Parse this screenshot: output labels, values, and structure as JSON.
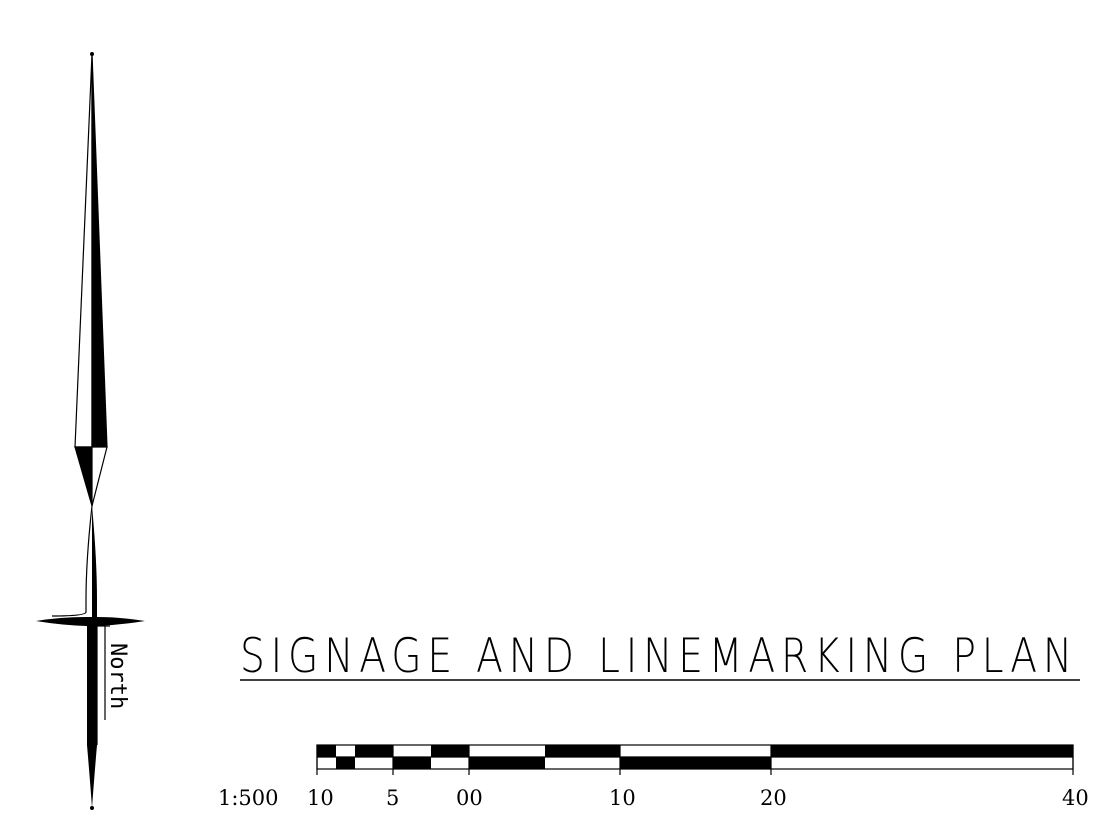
{
  "title": "SIGNAGE AND LINEMARKING PLAN",
  "north_arrow": {
    "label": "North",
    "icon": "north-arrow-icon"
  },
  "scale_bar": {
    "ratio_label": "1:500",
    "tick_labels": [
      "10",
      "5",
      "00",
      "10",
      "20",
      "40"
    ]
  },
  "colors": {
    "ink": "#000000",
    "paper": "#ffffff"
  }
}
